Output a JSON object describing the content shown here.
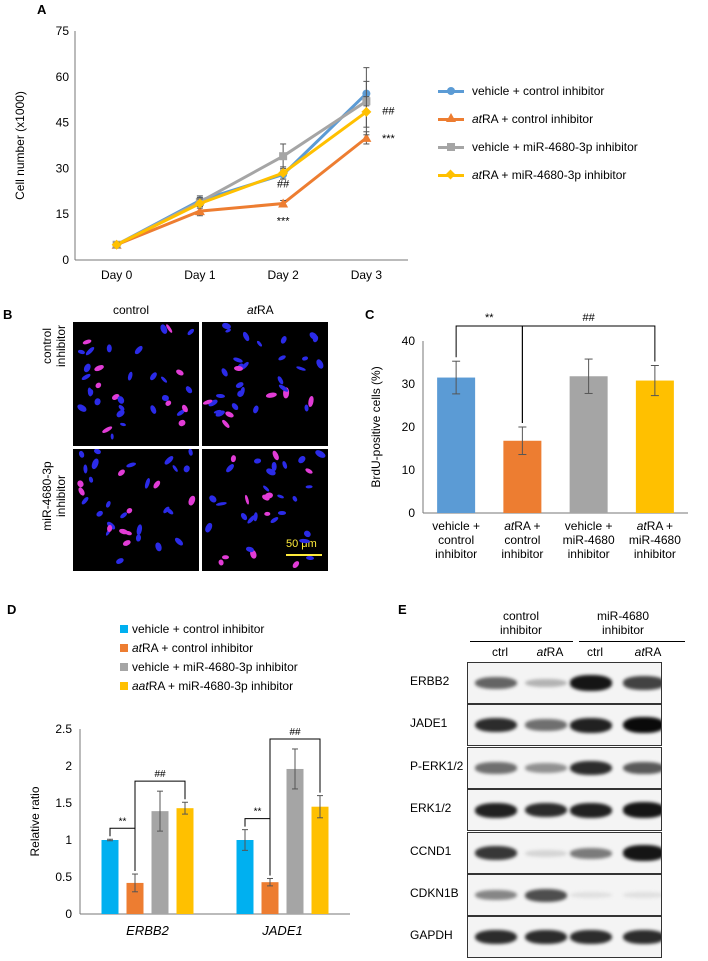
{
  "panel_labels": {
    "a": "A",
    "b": "B",
    "c": "C",
    "d": "D",
    "e": "E"
  },
  "colors": {
    "blue": "#5B9BD5",
    "orange": "#ED7D31",
    "gray": "#A5A5A5",
    "yellow": "#FFC000",
    "cyan": "#00B0F0"
  },
  "chart_data": [
    {
      "id": "A",
      "type": "line",
      "ylabel": "Cell number (x1000)",
      "categories": [
        "Day 0",
        "Day 1",
        "Day 2",
        "Day 3"
      ],
      "ylim": [
        0,
        75
      ],
      "yticks": [
        "0",
        "15",
        "30",
        "45",
        "60",
        "75"
      ],
      "series": [
        {
          "name": "vehicle  + control inhibitor",
          "name_italic": "",
          "name_rest": "vehicle  + control inhibitor",
          "color": "#5B9BD5",
          "marker": "circle",
          "values": [
            5,
            19.5,
            28,
            54.5
          ],
          "errors": [
            0.8,
            1.5,
            1.5,
            4
          ]
        },
        {
          "name": "atRA + control inhibitor",
          "name_italic": "at",
          "name_rest": "RA + control inhibitor",
          "color": "#ED7D31",
          "marker": "triangle",
          "values": [
            5,
            16,
            18.5,
            40
          ],
          "errors": [
            0.8,
            1.5,
            1,
            2
          ]
        },
        {
          "name": "vehicle  + miR-4680-3p  inhibitor",
          "name_italic": "",
          "name_rest": "vehicle  + miR-4680-3p  inhibitor",
          "color": "#A5A5A5",
          "marker": "square",
          "values": [
            5,
            19,
            34,
            52
          ],
          "errors": [
            0.8,
            1.5,
            4,
            11
          ]
        },
        {
          "name": "atRA + miR-4680-3p  inhibitor",
          "name_italic": "at",
          "name_rest": "RA + miR-4680-3p  inhibitor",
          "color": "#FFC000",
          "marker": "diamond",
          "values": [
            5,
            18.5,
            28.5,
            48.5
          ],
          "errors": [
            0.8,
            1.5,
            2,
            5
          ]
        }
      ],
      "annotations": [
        {
          "text": "##",
          "x": "Day 2",
          "y": 25
        },
        {
          "text": "***",
          "x": "Day 2",
          "y": 13
        },
        {
          "text": "##",
          "x": "Day 3",
          "y": 49
        },
        {
          "text": "***",
          "x": "Day 3",
          "y": 40
        }
      ]
    },
    {
      "id": "C",
      "type": "bar",
      "ylabel": "BrdU-positive  cells (%)",
      "ylim": [
        0,
        40
      ],
      "yticks": [
        "0",
        "10",
        "20",
        "30",
        "40"
      ],
      "categories": [
        {
          "l1a": "",
          "l1b": "vehicle +",
          "l2": "control",
          "l3": "inhibitor"
        },
        {
          "l1a": "at",
          "l1b": "RA +",
          "l2": "control",
          "l3": "inhibitor"
        },
        {
          "l1a": "",
          "l1b": "vehicle +",
          "l2": "miR-4680",
          "l3": "inhibitor"
        },
        {
          "l1a": "at",
          "l1b": "RA +",
          "l2": "miR-4680",
          "l3": "inhibitor"
        }
      ],
      "values": [
        31.5,
        16.8,
        31.8,
        30.8
      ],
      "errors": [
        3.8,
        3.2,
        4,
        3.5
      ],
      "colors": [
        "#5B9BD5",
        "#ED7D31",
        "#A5A5A5",
        "#FFC000"
      ],
      "brackets": [
        {
          "from": 0,
          "to": 1,
          "label": "**"
        },
        {
          "from": 1,
          "to": 3,
          "label": "##"
        }
      ]
    },
    {
      "id": "D",
      "type": "bar",
      "ylabel": "Relative  ratio",
      "ylim": [
        0,
        2.5
      ],
      "yticks": [
        "0",
        "0.5",
        "1",
        "1.5",
        "2",
        "2.5"
      ],
      "groups": [
        "ERBB2",
        "JADE1"
      ],
      "series": [
        {
          "name": "vehicle + control inhibitor",
          "name_italic": "",
          "name_rest": "vehicle + control inhibitor",
          "color": "#00B0F0",
          "values": [
            1.0,
            1.0
          ],
          "errors": [
            0.01,
            0.14
          ]
        },
        {
          "name": "atRA + control inhibitor",
          "name_italic": "at",
          "name_rest": "RA + control inhibitor",
          "color": "#ED7D31",
          "values": [
            0.42,
            0.43
          ],
          "errors": [
            0.12,
            0.05
          ]
        },
        {
          "name": "vehicle + miR-4680-3p inhibitor",
          "name_italic": "",
          "name_rest": "vehicle + miR-4680-3p inhibitor",
          "color": "#A5A5A5",
          "values": [
            1.39,
            1.96
          ],
          "errors": [
            0.27,
            0.27
          ]
        },
        {
          "name": "aatRA + miR-4680-3p  inhibitor",
          "name_italic": "aat",
          "name_rest": "RA + miR-4680-3p  inhibitor",
          "color": "#FFC000",
          "values": [
            1.43,
            1.45
          ],
          "errors": [
            0.08,
            0.15
          ]
        }
      ],
      "brackets": [
        {
          "group": 0,
          "from": 0,
          "to": 1,
          "label": "**"
        },
        {
          "group": 0,
          "from": 1,
          "to": 3,
          "label": "##"
        },
        {
          "group": 1,
          "from": 0,
          "to": 1,
          "label": "**"
        },
        {
          "group": 1,
          "from": 1,
          "to": 3,
          "label": "##"
        }
      ]
    }
  ],
  "panel_b": {
    "col_labels": [
      {
        "a": "",
        "b": "control"
      },
      {
        "a": "at",
        "b": "RA"
      }
    ],
    "row_labels": [
      [
        "control",
        "inhibitor"
      ],
      [
        "miR-4680-3p",
        "inhibitor"
      ]
    ],
    "scale_bar": "50 μm"
  },
  "panel_e": {
    "group1": [
      "control",
      "inhibitor"
    ],
    "group2": [
      "miR-4680",
      "inhibitor"
    ],
    "lanes": [
      {
        "a": "",
        "b": "ctrl"
      },
      {
        "a": "at",
        "b": "RA"
      },
      {
        "a": "",
        "b": "ctrl"
      },
      {
        "a": "at",
        "b": "RA"
      }
    ],
    "blots": [
      {
        "label": "ERBB2",
        "intensity": [
          0.6,
          0.25,
          0.95,
          0.75
        ]
      },
      {
        "label": "JADE1",
        "intensity": [
          0.85,
          0.55,
          0.9,
          1.0
        ]
      },
      {
        "label": "P-ERK1/2",
        "intensity": [
          0.55,
          0.4,
          0.85,
          0.65
        ]
      },
      {
        "label": "ERK1/2",
        "intensity": [
          0.9,
          0.85,
          0.9,
          0.95
        ]
      },
      {
        "label": "CCND1",
        "intensity": [
          0.8,
          0.1,
          0.5,
          0.95
        ]
      },
      {
        "label": "CDKN1B",
        "intensity": [
          0.45,
          0.7,
          0.05,
          0.05
        ]
      },
      {
        "label": "GAPDH",
        "intensity": [
          0.85,
          0.85,
          0.85,
          0.85
        ]
      }
    ]
  }
}
